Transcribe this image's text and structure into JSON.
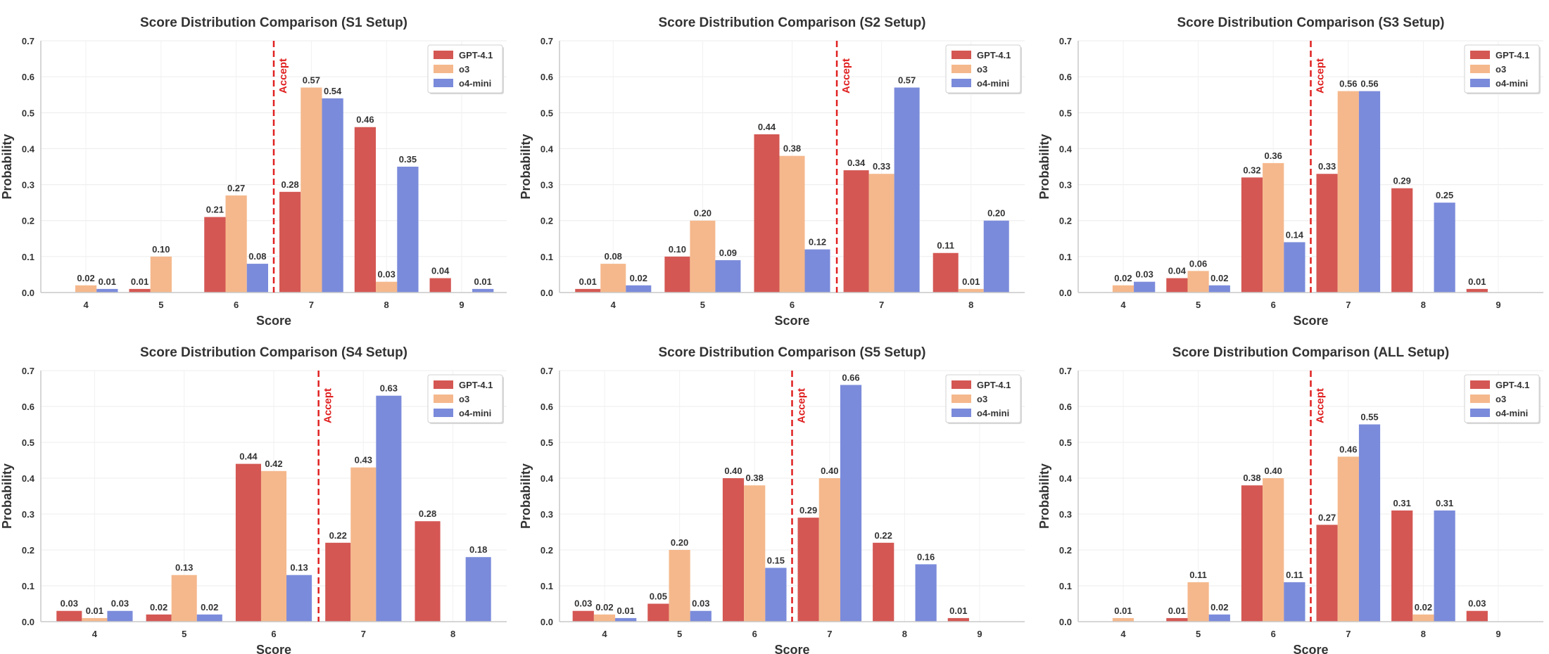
{
  "figure": {
    "xlabel": "Score",
    "ylabel": "Probability",
    "ylim": [
      0,
      0.7
    ],
    "yticks": [
      "0.0",
      "0.1",
      "0.2",
      "0.3",
      "0.4",
      "0.5",
      "0.6",
      "0.7"
    ],
    "accept_label": "Accept",
    "legend_position": "top-right",
    "grid": true,
    "colors": {
      "GPT-4.1": "#d45753",
      "o3": "#f5b88c",
      "o4-mini": "#7b8bdb",
      "accept_line": "#e02020"
    }
  },
  "chart_data": [
    {
      "type": "bar",
      "title": "Score Distribution Comparison (S1 Setup)",
      "categories": [
        "4",
        "5",
        "6",
        "7",
        "8",
        "9"
      ],
      "accept_at": 7,
      "series": [
        {
          "name": "GPT-4.1",
          "values": [
            null,
            0.01,
            0.21,
            0.28,
            0.46,
            0.04
          ],
          "labels": [
            null,
            "0.01",
            "0.21",
            "0.28",
            "0.46",
            "0.04"
          ]
        },
        {
          "name": "o3",
          "values": [
            0.02,
            0.1,
            0.27,
            0.57,
            0.03,
            null
          ],
          "labels": [
            "0.02",
            "0.10",
            "0.27",
            "0.57",
            "0.03",
            null
          ]
        },
        {
          "name": "o4-mini",
          "values": [
            0.01,
            null,
            0.08,
            0.54,
            0.35,
            0.01
          ],
          "labels": [
            "0.01",
            null,
            "0.08",
            "0.54",
            "0.35",
            "0.01"
          ]
        }
      ]
    },
    {
      "type": "bar",
      "title": "Score Distribution Comparison (S2 Setup)",
      "categories": [
        "4",
        "5",
        "6",
        "7",
        "8"
      ],
      "accept_at": 7,
      "series": [
        {
          "name": "GPT-4.1",
          "values": [
            0.01,
            0.1,
            0.44,
            0.34,
            0.11
          ],
          "labels": [
            "0.01",
            "0.10",
            "0.44",
            "0.34",
            "0.11"
          ]
        },
        {
          "name": "o3",
          "values": [
            0.08,
            0.2,
            0.38,
            0.33,
            0.01
          ],
          "labels": [
            "0.08",
            "0.20",
            "0.38",
            "0.33",
            "0.01"
          ]
        },
        {
          "name": "o4-mini",
          "values": [
            0.02,
            0.09,
            0.12,
            0.57,
            0.2
          ],
          "labels": [
            "0.02",
            "0.09",
            "0.12",
            "0.57",
            "0.20"
          ]
        }
      ]
    },
    {
      "type": "bar",
      "title": "Score Distribution Comparison (S3 Setup)",
      "categories": [
        "4",
        "5",
        "6",
        "7",
        "8",
        "9"
      ],
      "accept_at": 7,
      "series": [
        {
          "name": "GPT-4.1",
          "values": [
            null,
            0.04,
            0.32,
            0.33,
            0.29,
            0.01
          ],
          "labels": [
            null,
            "0.04",
            "0.32",
            "0.33",
            "0.29",
            "0.01"
          ]
        },
        {
          "name": "o3",
          "values": [
            0.02,
            0.06,
            0.36,
            0.56,
            null,
            null
          ],
          "labels": [
            "0.02",
            "0.06",
            "0.36",
            "0.56",
            null,
            null
          ]
        },
        {
          "name": "o4-mini",
          "values": [
            0.03,
            0.02,
            0.14,
            0.56,
            0.25,
            null
          ],
          "labels": [
            "0.03",
            "0.02",
            "0.14",
            "0.56",
            "0.25",
            null
          ]
        }
      ]
    },
    {
      "type": "bar",
      "title": "Score Distribution Comparison (S4 Setup)",
      "categories": [
        "4",
        "5",
        "6",
        "7",
        "8"
      ],
      "accept_at": 7,
      "series": [
        {
          "name": "GPT-4.1",
          "values": [
            0.03,
            0.02,
            0.44,
            0.22,
            0.28
          ],
          "labels": [
            "0.03",
            "0.02",
            "0.44",
            "0.22",
            "0.28"
          ]
        },
        {
          "name": "o3",
          "values": [
            0.01,
            0.13,
            0.42,
            0.43,
            null
          ],
          "labels": [
            "0.01",
            "0.13",
            "0.42",
            "0.43",
            null
          ]
        },
        {
          "name": "o4-mini",
          "values": [
            0.03,
            0.02,
            0.13,
            0.63,
            0.18
          ],
          "labels": [
            "0.03",
            "0.02",
            "0.13",
            "0.63",
            "0.18"
          ]
        }
      ]
    },
    {
      "type": "bar",
      "title": "Score Distribution Comparison (S5 Setup)",
      "categories": [
        "4",
        "5",
        "6",
        "7",
        "8",
        "9"
      ],
      "accept_at": 7,
      "series": [
        {
          "name": "GPT-4.1",
          "values": [
            0.03,
            0.05,
            0.4,
            0.29,
            0.22,
            0.01
          ],
          "labels": [
            "0.03",
            "0.05",
            "0.40",
            "0.29",
            "0.22",
            "0.01"
          ]
        },
        {
          "name": "o3",
          "values": [
            0.02,
            0.2,
            0.38,
            0.4,
            null,
            null
          ],
          "labels": [
            "0.02",
            "0.20",
            "0.38",
            "0.40",
            null,
            null
          ]
        },
        {
          "name": "o4-mini",
          "values": [
            0.01,
            0.03,
            0.15,
            0.66,
            0.16,
            null
          ],
          "labels": [
            "0.01",
            "0.03",
            "0.15",
            "0.66",
            "0.16",
            null
          ]
        }
      ]
    },
    {
      "type": "bar",
      "title": "Score Distribution Comparison (ALL Setup)",
      "categories": [
        "4",
        "5",
        "6",
        "7",
        "8",
        "9"
      ],
      "accept_at": 7,
      "series": [
        {
          "name": "GPT-4.1",
          "values": [
            null,
            0.01,
            0.38,
            0.27,
            0.31,
            0.03
          ],
          "labels": [
            null,
            "0.01",
            "0.38",
            "0.27",
            "0.31",
            "0.03"
          ]
        },
        {
          "name": "o3",
          "values": [
            0.01,
            0.11,
            0.4,
            0.46,
            0.02,
            null
          ],
          "labels": [
            "0.01",
            "0.11",
            "0.40",
            "0.46",
            "0.02",
            null
          ]
        },
        {
          "name": "o4-mini",
          "values": [
            null,
            0.02,
            0.11,
            0.55,
            0.31,
            null
          ],
          "labels": [
            null,
            "0.02",
            "0.11",
            "0.55",
            "0.31",
            null
          ]
        }
      ]
    }
  ]
}
